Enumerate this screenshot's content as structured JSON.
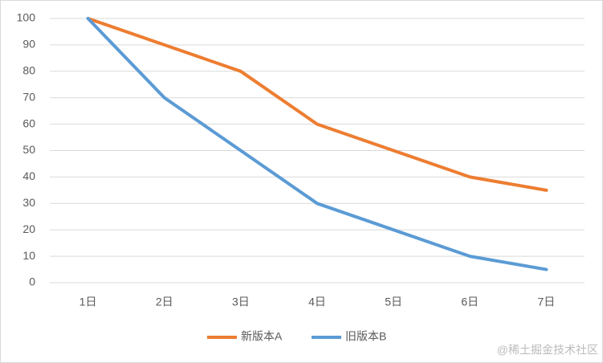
{
  "chart_data": {
    "type": "line",
    "categories": [
      "1日",
      "2日",
      "3日",
      "4日",
      "5日",
      "6日",
      "7日"
    ],
    "series": [
      {
        "name": "新版本A",
        "color": "#ed7d31",
        "values": [
          100,
          90,
          80,
          60,
          50,
          40,
          35
        ]
      },
      {
        "name": "旧版本B",
        "color": "#5b9bd5",
        "values": [
          100,
          70,
          50,
          30,
          20,
          10,
          5
        ]
      }
    ],
    "ylim": [
      0,
      100
    ],
    "yticks": [
      0,
      10,
      20,
      30,
      40,
      50,
      60,
      70,
      80,
      90,
      100
    ],
    "grid": true,
    "legend": "bottom",
    "watermark": "@稀土掘金技术社区"
  }
}
